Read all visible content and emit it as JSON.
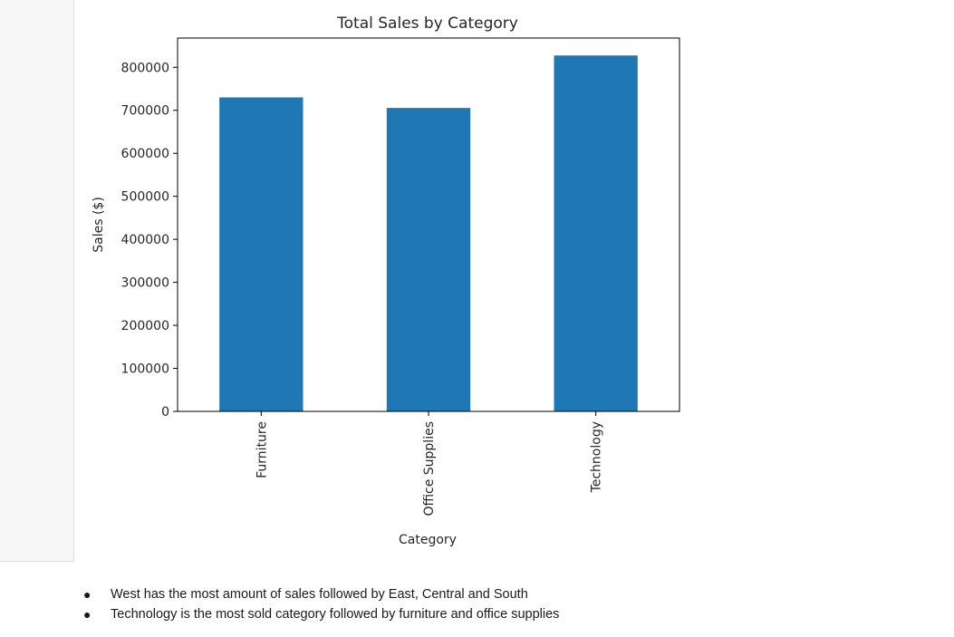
{
  "bullets": [
    "West has the most amount of sales followed by East, Central and South",
    "Technology is the most sold category followed by furniture and office supplies"
  ],
  "chart_data": {
    "type": "bar",
    "title": "Total Sales by Category",
    "xlabel": "Category",
    "ylabel": "Sales ($)",
    "categories": [
      "Furniture",
      "Office Supplies",
      "Technology"
    ],
    "values": [
      730000,
      705500,
      827500
    ],
    "ylim": [
      0,
      868000
    ],
    "yticks": [
      0,
      100000,
      200000,
      300000,
      400000,
      500000,
      600000,
      700000,
      800000
    ],
    "ytick_labels": [
      "0",
      "100000",
      "200000",
      "300000",
      "400000",
      "500000",
      "600000",
      "700000",
      "800000"
    ],
    "bar_color": "#1f77b4",
    "grid": false,
    "legend": "none"
  }
}
